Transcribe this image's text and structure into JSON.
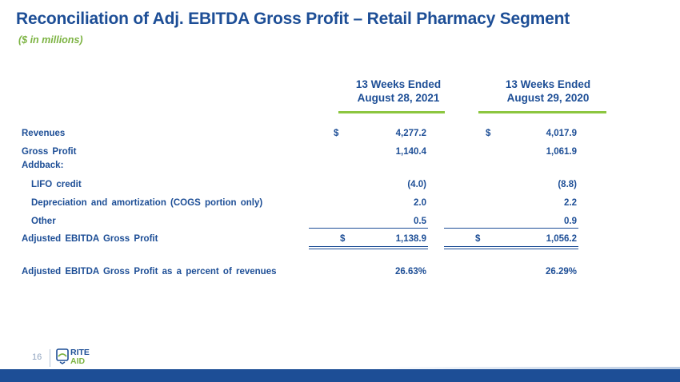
{
  "title": "Reconciliation of Adj. EBITDA Gross Profit – Retail Pharmacy Segment",
  "subtitle": "($ in millions)",
  "columns": [
    {
      "line1": "13 Weeks Ended",
      "line2": "August 28, 2021"
    },
    {
      "line1": "13 Weeks Ended",
      "line2": "August 29, 2020"
    }
  ],
  "currency_symbol": "$",
  "rows": [
    {
      "label": "Revenues",
      "values": [
        "4,277.2",
        "4,017.9"
      ]
    },
    {
      "label": "Gross Profit",
      "values": [
        "1,140.4",
        "1,061.9"
      ]
    },
    {
      "label": "Addback:",
      "values": [
        "",
        ""
      ]
    },
    {
      "label": "LIFO credit",
      "values": [
        "(4.0)",
        "(8.8)"
      ]
    },
    {
      "label": "Depreciation and amortization (COGS portion only)",
      "values": [
        "2.0",
        "2.2"
      ]
    },
    {
      "label": "Other",
      "values": [
        "0.5",
        "0.9"
      ]
    },
    {
      "label": "Adjusted EBITDA Gross Profit",
      "values": [
        "1,138.9",
        "1,056.2"
      ]
    },
    {
      "label": "Adjusted EBITDA Gross Profit as a percent of revenues",
      "values": [
        "26.63%",
        "26.29%"
      ]
    }
  ],
  "footer": {
    "page_number": "16",
    "logo_top": "RITE",
    "logo_bottom": "AID"
  },
  "colors": {
    "primary_blue": "#1d4e96",
    "accent_green": "#7cb342"
  }
}
